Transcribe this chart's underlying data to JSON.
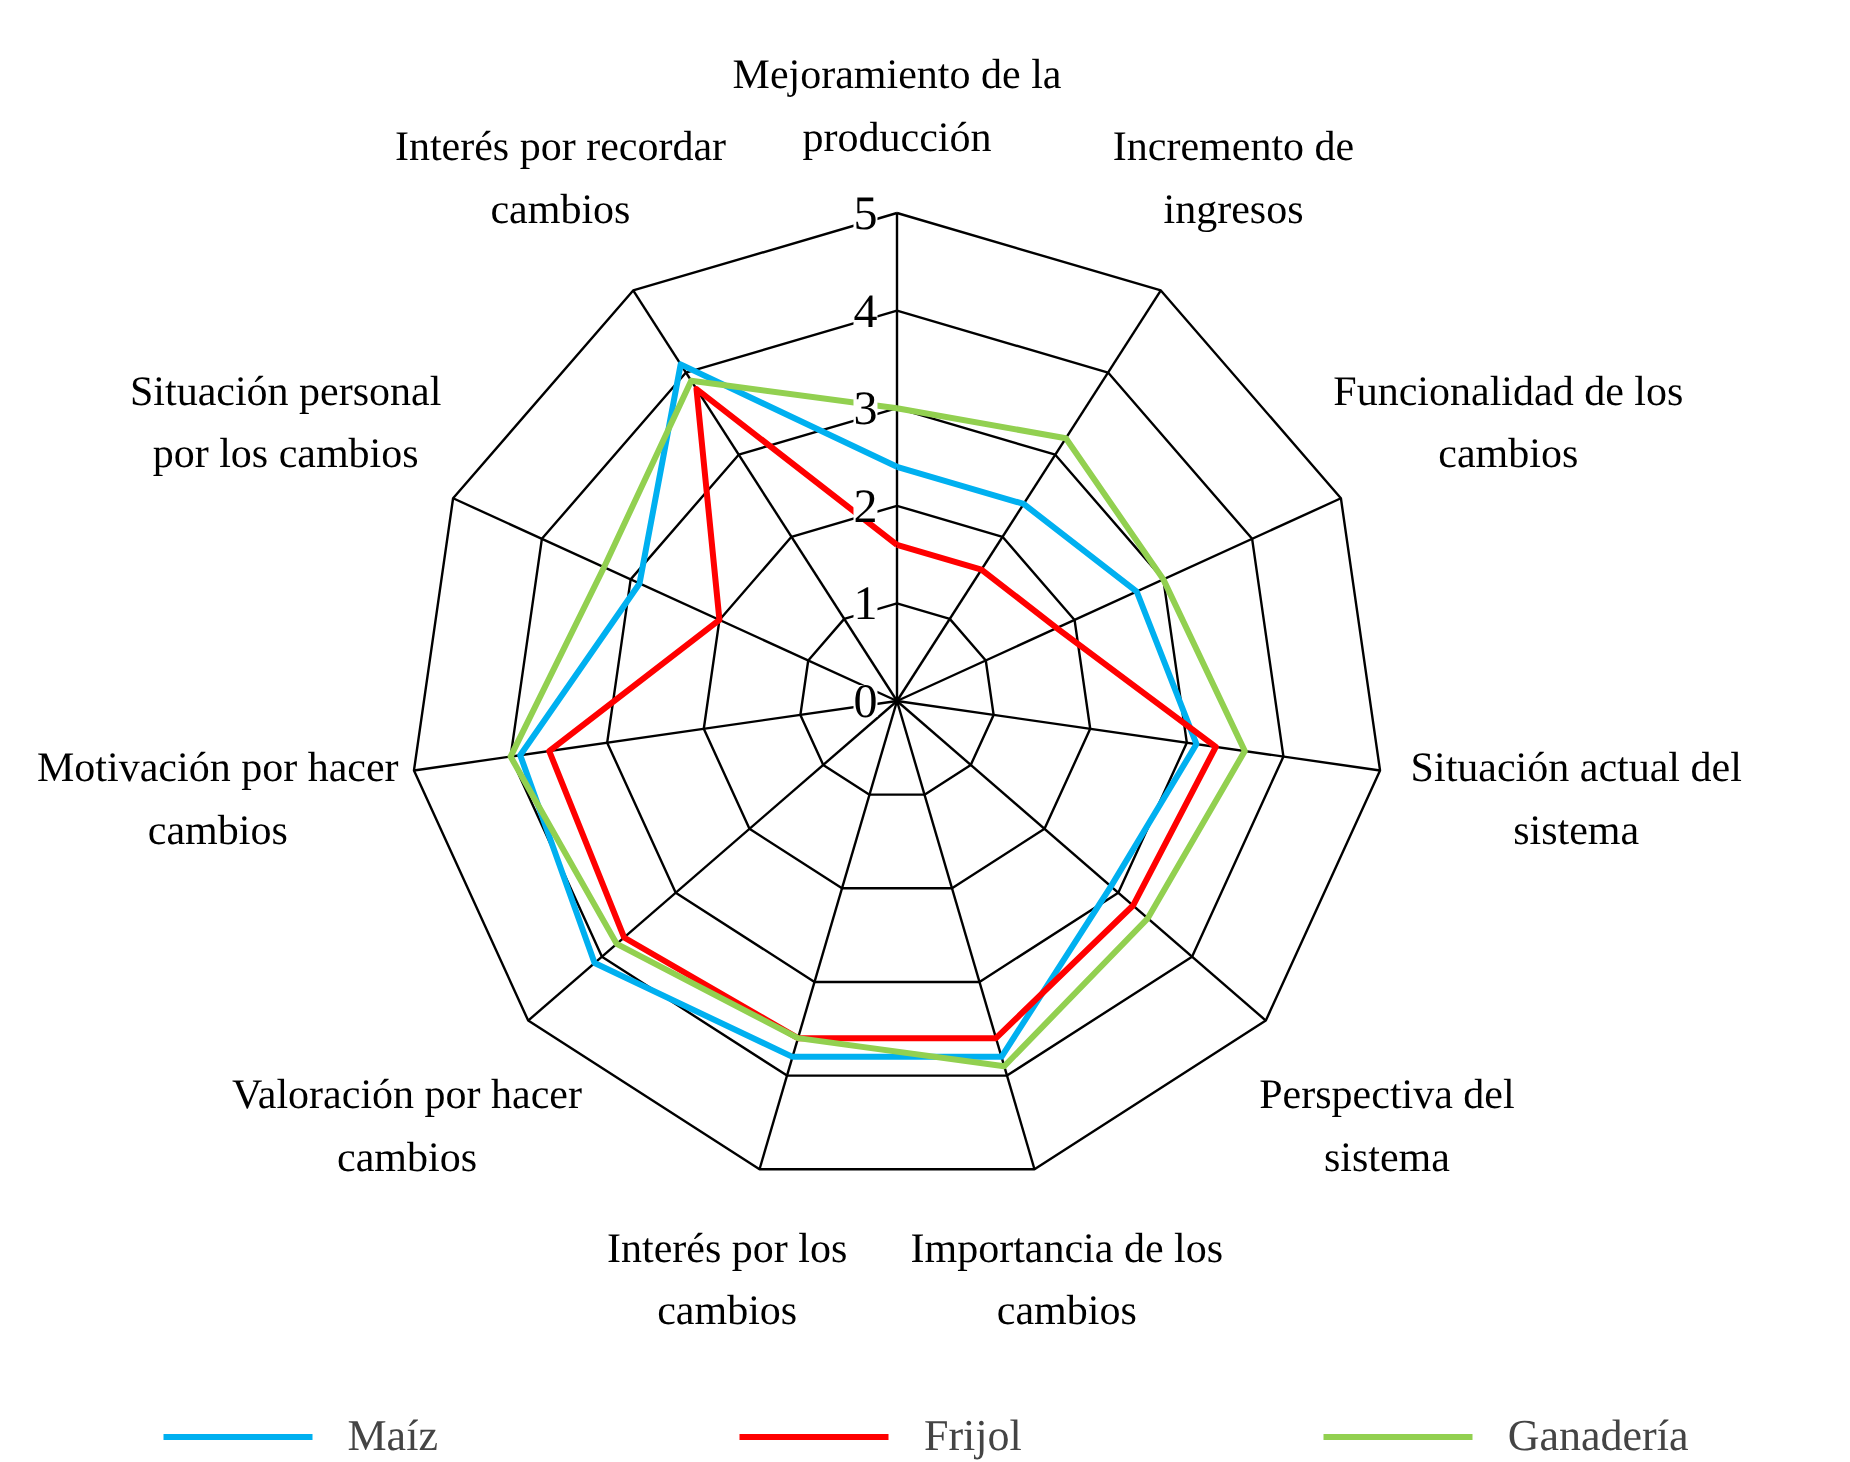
{
  "chart_data": {
    "type": "radar",
    "categories": [
      "Mejoramiento de la producción",
      "Incremento de ingresos",
      "Funcionalidad de los cambios",
      "Situación actual del sistema",
      "Perspectiva del sistema",
      "Importancia de los cambios",
      "Interés por los cambios",
      "Valoración por hacer cambios",
      "Motivación por hacer cambios",
      "Situación personal por los cambios",
      "Interés por recordar cambios"
    ],
    "series": [
      {
        "name": "Maíz",
        "color": "#00b0f0",
        "values": [
          2.4,
          2.4,
          2.7,
          3.1,
          2.9,
          3.8,
          3.8,
          4.1,
          3.9,
          2.9,
          4.1
        ]
      },
      {
        "name": "Frijol",
        "color": "#ff0000",
        "values": [
          1.6,
          1.6,
          1.8,
          3.3,
          3.2,
          3.6,
          3.6,
          3.7,
          3.6,
          2.0,
          3.8
        ]
      },
      {
        "name": "Ganadería",
        "color": "#92d050",
        "values": [
          3.0,
          3.2,
          3.0,
          3.6,
          3.4,
          3.9,
          3.6,
          3.8,
          4.0,
          3.3,
          3.9
        ]
      }
    ],
    "ylim": [
      0,
      5
    ],
    "yticks": [
      0,
      1,
      2,
      3,
      4,
      5
    ],
    "grid": true,
    "legend": "bottom",
    "marker": "none",
    "line_style": "solid"
  }
}
